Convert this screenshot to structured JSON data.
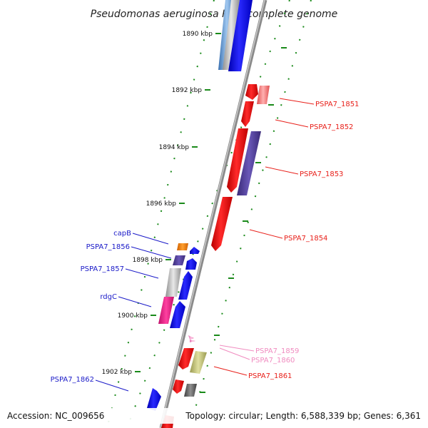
{
  "title": "Pseudomonas aeruginosa PA7, complete genome",
  "ticks": [
    {
      "label": "1890 kbp"
    },
    {
      "label": "1892 kbp"
    },
    {
      "label": "1894 kbp"
    },
    {
      "label": "1896 kbp"
    },
    {
      "label": "1898 kbp"
    },
    {
      "label": "1900 kbp"
    },
    {
      "label": "1902 kbp"
    }
  ],
  "genes": [
    {
      "label": "PSPA7_1851",
      "color": "#e8201a"
    },
    {
      "label": "PSPA7_1852",
      "color": "#e8201a"
    },
    {
      "label": "PSPA7_1853",
      "color": "#e8201a"
    },
    {
      "label": "PSPA7_1854",
      "color": "#e8201a"
    },
    {
      "label": "capB",
      "color": "#1a1ac8"
    },
    {
      "label": "PSPA7_1856",
      "color": "#1a1ac8"
    },
    {
      "label": "PSPA7_1857",
      "color": "#1a1ac8"
    },
    {
      "label": "rdgC",
      "color": "#1a1ac8"
    },
    {
      "label": "PSPA7_1859",
      "color": "#f08cc0"
    },
    {
      "label": "PSPA7_1860",
      "color": "#f08cc0"
    },
    {
      "label": "PSPA7_1861",
      "color": "#e8201a"
    },
    {
      "label": "PSPA7_1862",
      "color": "#1a1ac8"
    }
  ],
  "footer": {
    "accession": "Accession: NC_009656",
    "topology": "Topology: circular; Length: 6,588,339 bp; Genes: 6,361"
  }
}
